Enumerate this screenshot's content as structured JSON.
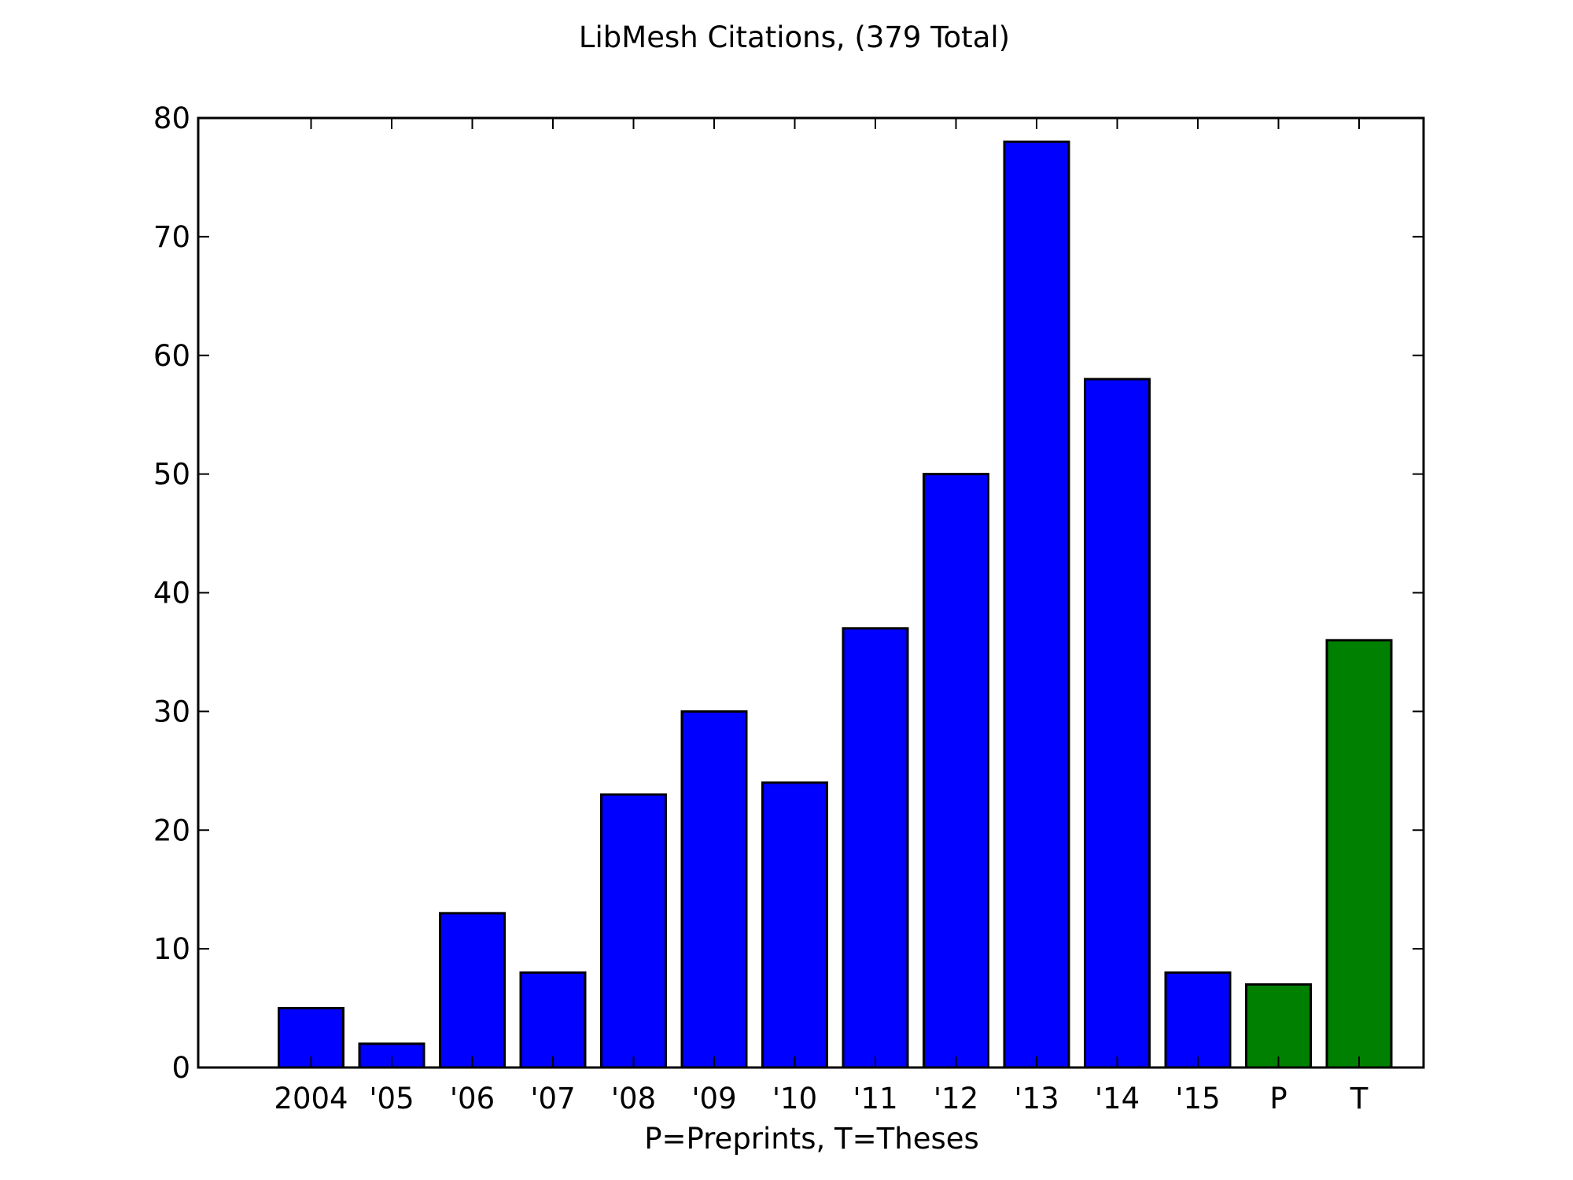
{
  "chart_data": {
    "type": "bar",
    "title": "LibMesh Citations, (379 Total)",
    "xlabel": "P=Preprints, T=Theses",
    "ylabel": "",
    "ylim": [
      0,
      80
    ],
    "yticks": [
      0,
      10,
      20,
      30,
      40,
      50,
      60,
      70,
      80
    ],
    "grid": false,
    "categories": [
      "2004",
      "'05",
      "'06",
      "'07",
      "'08",
      "'09",
      "'10",
      "'11",
      "'12",
      "'13",
      "'14",
      "'15",
      "P",
      "T"
    ],
    "values": [
      5,
      2,
      13,
      8,
      23,
      30,
      24,
      37,
      50,
      78,
      58,
      8,
      7,
      36
    ],
    "bar_colors": [
      "#0000ff",
      "#0000ff",
      "#0000ff",
      "#0000ff",
      "#0000ff",
      "#0000ff",
      "#0000ff",
      "#0000ff",
      "#0000ff",
      "#0000ff",
      "#0000ff",
      "#0000ff",
      "#008000",
      "#008000"
    ],
    "edge_color": "#000000"
  }
}
